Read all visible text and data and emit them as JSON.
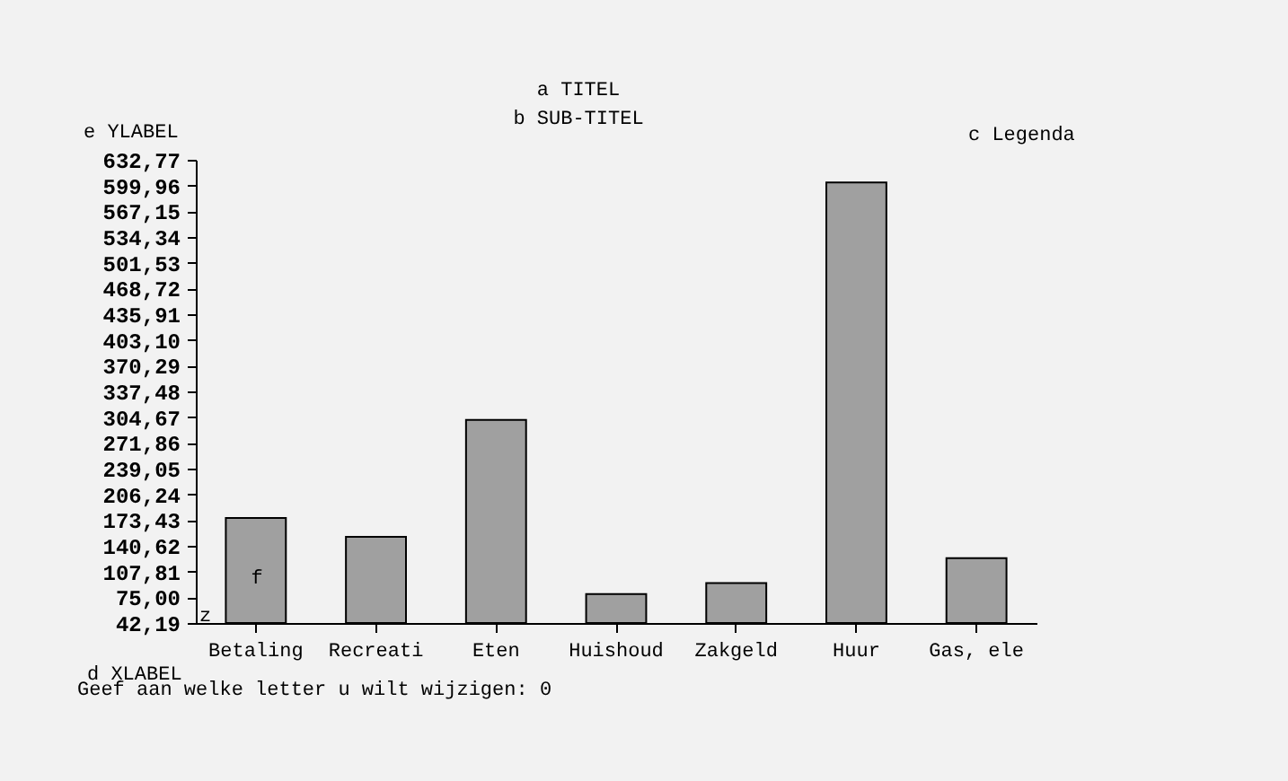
{
  "chart_data": {
    "type": "bar",
    "title": "a TITEL",
    "subtitle": "b SUB-TITEL",
    "xlabel": "d XLABEL",
    "ylabel": "e YLABEL",
    "categories": [
      "Betaling",
      "Recreati",
      "Eten",
      "Huishoud",
      "Zakgeld",
      "Huur",
      "Gas, ele"
    ],
    "values": [
      176,
      152,
      301,
      79,
      93,
      604,
      125
    ],
    "color": "#a0a0a0",
    "ylim": [
      42.19,
      632.77
    ],
    "yticks": [
      {
        "value": 42.19,
        "label": "42,19"
      },
      {
        "value": 75.0,
        "label": "75,00"
      },
      {
        "value": 107.81,
        "label": "107,81"
      },
      {
        "value": 140.62,
        "label": "140,62"
      },
      {
        "value": 173.43,
        "label": "173,43"
      },
      {
        "value": 206.24,
        "label": "206,24"
      },
      {
        "value": 239.05,
        "label": "239,05"
      },
      {
        "value": 271.86,
        "label": "271,86"
      },
      {
        "value": 304.67,
        "label": "304,67"
      },
      {
        "value": 337.48,
        "label": "337,48"
      },
      {
        "value": 370.29,
        "label": "370,29"
      },
      {
        "value": 403.1,
        "label": "403,10"
      },
      {
        "value": 435.91,
        "label": "435,91"
      },
      {
        "value": 468.72,
        "label": "468,72"
      },
      {
        "value": 501.53,
        "label": "501,53"
      },
      {
        "value": 534.34,
        "label": "534,34"
      },
      {
        "value": 567.15,
        "label": "567,15"
      },
      {
        "value": 599.96,
        "label": "599,96"
      },
      {
        "value": 632.77,
        "label": "632,77"
      }
    ],
    "annotations": [
      "c Legenda",
      "f",
      "z",
      "Geef aan welke letter u wilt wijzigen: 0"
    ]
  }
}
